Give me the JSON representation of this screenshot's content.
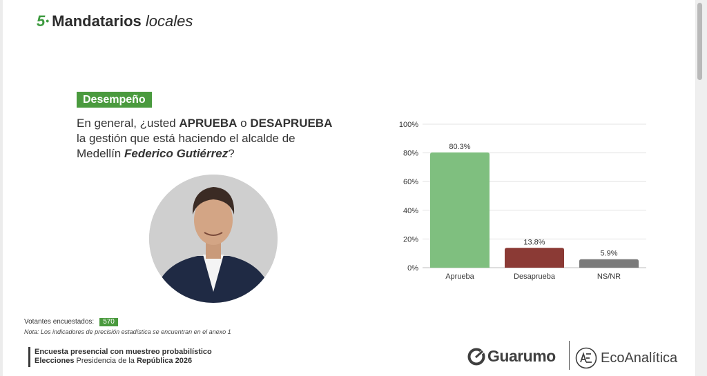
{
  "header": {
    "number": "5",
    "title_bold": "Mandatarios",
    "title_italic": "locales"
  },
  "badge": "Desempeño",
  "question": {
    "p1": "En general, ¿usted ",
    "b1": "APRUEBA",
    "p2": " o ",
    "b2": "DESAPRUEBA",
    "p3": " la gestión que está haciendo el alcalde de Medellín ",
    "name": "Federico Gutiérrez",
    "p4": "?"
  },
  "sample": {
    "label": "Votantes encuestados:",
    "n": "570"
  },
  "note": "Nota: Los indicadores de precisión estadística se encuentran en el anexo 1",
  "footer": {
    "line1": "Encuesta presencial con muestreo probabilístico",
    "line2_bold": "Elecciones",
    "line2_rest": " Presidencia de la ",
    "line2_bold2": "República 2026"
  },
  "logos": {
    "guarumo": "Guarumo",
    "ecoanalitica": "EcoAnalítica"
  },
  "colors": {
    "accent": "#4a9a3e",
    "aprueba": "#7fbf7f",
    "desaprueba": "#8b3a35",
    "nsnr": "#7a7a7a"
  },
  "chart_data": {
    "type": "bar",
    "categories": [
      "Aprueba",
      "Desaprueba",
      "NS/NR"
    ],
    "values": [
      80.3,
      13.8,
      5.9
    ],
    "value_labels": [
      "80.3%",
      "13.8%",
      "5.9%"
    ],
    "colors": [
      "#7fbf7f",
      "#8b3a35",
      "#7a7a7a"
    ],
    "ylim": [
      0,
      100
    ],
    "yticks": [
      0,
      20,
      40,
      60,
      80,
      100
    ],
    "ytick_labels": [
      "0%",
      "20%",
      "40%",
      "60%",
      "80%",
      "100%"
    ],
    "grid": true
  }
}
